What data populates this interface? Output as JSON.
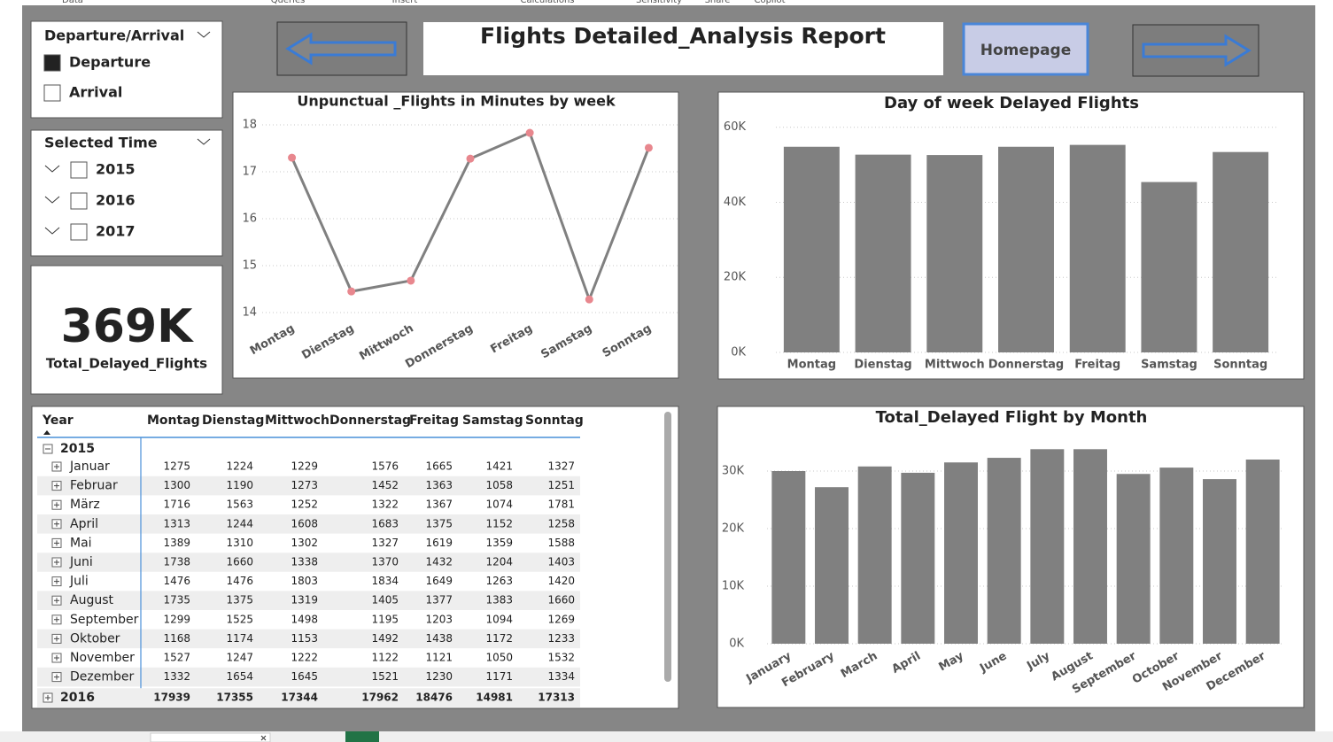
{
  "ribbon": [
    "Data",
    "Queries",
    "Insert",
    "Calculations",
    "Sensitivity",
    "Share",
    "Copilot"
  ],
  "header": {
    "title": "Flights Detailed_Analysis Report",
    "homepage_button": "Homepage"
  },
  "slicers": [
    {
      "title": "Departure/Arrival",
      "items": [
        {
          "label": "Departure",
          "checked": true
        },
        {
          "label": "Arrival",
          "checked": false
        }
      ]
    },
    {
      "title": "Selected Time",
      "items": [
        {
          "label": "2015",
          "checked": false
        },
        {
          "label": "2016",
          "checked": false
        },
        {
          "label": "2017",
          "checked": false
        }
      ]
    }
  ],
  "card": {
    "value": "369K",
    "label": "Total_Delayed_Flights"
  },
  "chart_data": [
    {
      "type": "line",
      "title": "Unpunctual _Flights in Minutes by week",
      "categories": [
        "Montag",
        "Dienstag",
        "Mittwoch",
        "Donnerstag",
        "Freitag",
        "Samstag",
        "Sonntag"
      ],
      "values": [
        17.3,
        14.45,
        14.68,
        17.28,
        17.83,
        14.28,
        17.51
      ],
      "color": "#808080",
      "marker_color": "#e8878e",
      "ylim": [
        13.8,
        18.2
      ],
      "yticks": [
        14,
        15,
        16,
        17,
        18
      ],
      "grid": true
    },
    {
      "type": "bar",
      "title": "Day of week Delayed Flights",
      "categories": [
        "Montag",
        "Dienstag",
        "Mittwoch",
        "Donnerstag",
        "Freitag",
        "Samstag",
        "Sonntag"
      ],
      "values": [
        54800,
        52700,
        52600,
        54800,
        55300,
        45400,
        53400
      ],
      "color": "#808080",
      "ylim": [
        0,
        63000
      ],
      "yticks": [
        {
          "value": 0,
          "label": "0K"
        },
        {
          "value": 20000,
          "label": "20K"
        },
        {
          "value": 40000,
          "label": "40K"
        },
        {
          "value": 60000,
          "label": "60K"
        }
      ],
      "grid": true
    },
    {
      "type": "bar",
      "title": "Total_Delayed Flight by Month",
      "categories": [
        "January",
        "February",
        "March",
        "April",
        "May",
        "June",
        "July",
        "August",
        "September",
        "October",
        "November",
        "December"
      ],
      "values": [
        30000,
        27200,
        30800,
        29700,
        31500,
        32300,
        33800,
        33800,
        29500,
        30600,
        28600,
        32000
      ],
      "color": "#808080",
      "ylim": [
        0,
        35000
      ],
      "yticks": [
        {
          "value": 0,
          "label": "0K"
        },
        {
          "value": 10000,
          "label": "10K"
        },
        {
          "value": 20000,
          "label": "20K"
        },
        {
          "value": 30000,
          "label": "30K"
        }
      ],
      "grid": true
    }
  ],
  "table": {
    "columns": [
      "Year",
      "Montag",
      "Dienstag",
      "Mittwoch",
      "Donnerstag",
      "Freitag",
      "Samstag",
      "Sonntag"
    ],
    "groups": [
      {
        "year": "2015",
        "months": [
          {
            "name": "Januar",
            "values": [
              1275,
              1224,
              1229,
              1576,
              1665,
              1421,
              1327
            ]
          },
          {
            "name": "Februar",
            "values": [
              1300,
              1190,
              1273,
              1452,
              1363,
              1058,
              1251
            ]
          },
          {
            "name": "März",
            "values": [
              1716,
              1563,
              1252,
              1322,
              1367,
              1074,
              1781
            ]
          },
          {
            "name": "April",
            "values": [
              1313,
              1244,
              1608,
              1683,
              1375,
              1152,
              1258
            ]
          },
          {
            "name": "Mai",
            "values": [
              1389,
              1310,
              1302,
              1327,
              1619,
              1359,
              1588
            ]
          },
          {
            "name": "Juni",
            "values": [
              1738,
              1660,
              1338,
              1370,
              1432,
              1204,
              1403
            ]
          },
          {
            "name": "Juli",
            "values": [
              1476,
              1476,
              1803,
              1834,
              1649,
              1263,
              1420
            ]
          },
          {
            "name": "August",
            "values": [
              1735,
              1375,
              1319,
              1405,
              1377,
              1383,
              1660
            ]
          },
          {
            "name": "September",
            "values": [
              1299,
              1525,
              1498,
              1195,
              1203,
              1094,
              1269
            ]
          },
          {
            "name": "Oktober",
            "values": [
              1168,
              1174,
              1153,
              1492,
              1438,
              1172,
              1233
            ]
          },
          {
            "name": "November",
            "values": [
              1527,
              1247,
              1222,
              1122,
              1121,
              1050,
              1532
            ]
          },
          {
            "name": "Dezember",
            "values": [
              1332,
              1654,
              1645,
              1521,
              1230,
              1171,
              1334
            ]
          }
        ]
      },
      {
        "year": "2016",
        "values": [
          17939,
          17355,
          17344,
          17962,
          18476,
          14981,
          17313
        ]
      }
    ]
  }
}
